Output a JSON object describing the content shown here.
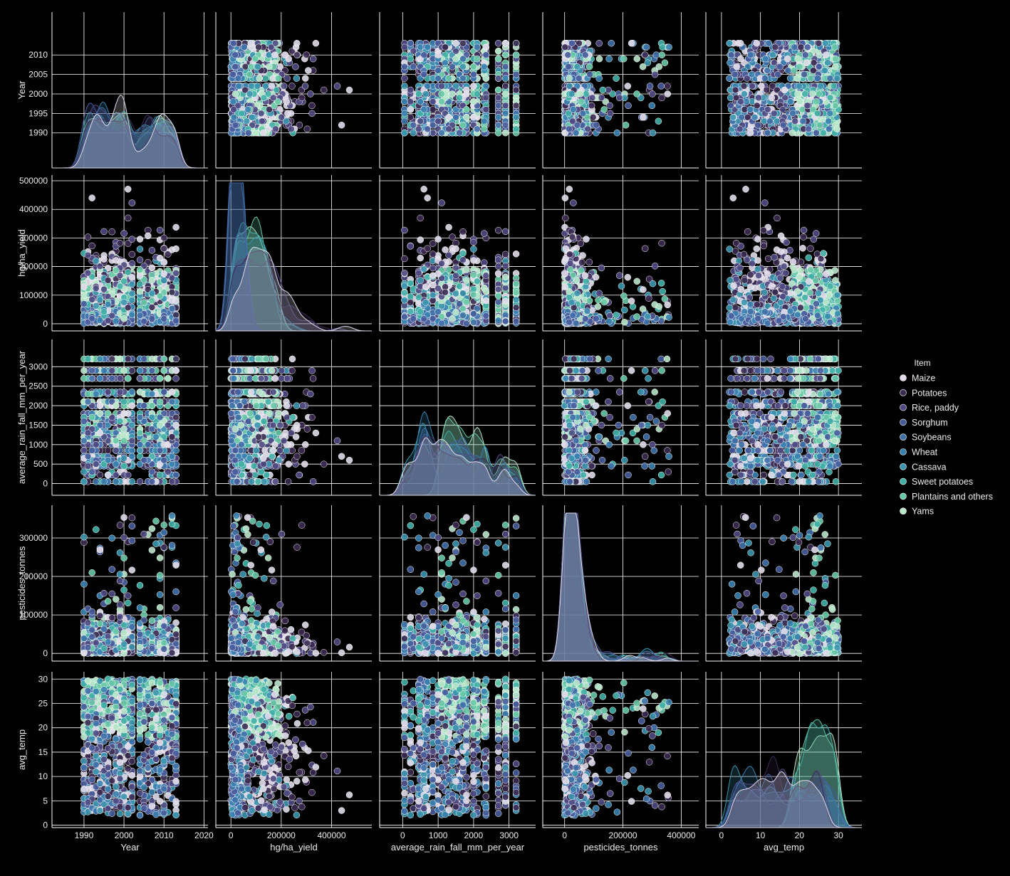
{
  "chart_data": {
    "type": "scatter",
    "subtype": "pairplot",
    "variables": [
      "Year",
      "hg/ha_yield",
      "average_rain_fall_mm_per_year",
      "pesticides_tonnes",
      "avg_temp"
    ],
    "hue": "Item",
    "diagonal": "kde",
    "grid": true,
    "legend": {
      "title": "Item",
      "placement": "right",
      "entries": [
        {
          "label": "Maize",
          "color": "#e1dbea"
        },
        {
          "label": "Potatoes",
          "color": "#3b2a52"
        },
        {
          "label": "Rice, paddy",
          "color": "#4f4a83"
        },
        {
          "label": "Sorghum",
          "color": "#475c9c"
        },
        {
          "label": "Soybeans",
          "color": "#3f70a8"
        },
        {
          "label": "Wheat",
          "color": "#3a82b0"
        },
        {
          "label": "Cassava",
          "color": "#3a95ae"
        },
        {
          "label": "Sweet potatoes",
          "color": "#40b0a6"
        },
        {
          "label": "Plantains and others",
          "color": "#68c9a6"
        },
        {
          "label": "Yams",
          "color": "#b8e6c9"
        }
      ]
    },
    "axes": {
      "Year": {
        "range": [
          1981,
          2021
        ],
        "ticks": [
          1990,
          1995,
          2000,
          2005,
          2010
        ],
        "ticks_x": [
          1990,
          2000,
          2010,
          2020
        ]
      },
      "hg/ha_yield": {
        "range": [
          -25000,
          520000
        ],
        "ticks": [
          0,
          100000,
          200000,
          300000,
          400000,
          500000
        ],
        "ticks_x": [
          0,
          200000,
          400000
        ]
      },
      "average_rain_fall_mm_per_year": {
        "range": [
          -300,
          3700
        ],
        "ticks": [
          0,
          500,
          1000,
          1500,
          2000,
          2500,
          3000
        ],
        "ticks_x": [
          0,
          1000,
          2000,
          3000
        ]
      },
      "pesticides_tonnes": {
        "range": [
          -20000,
          385000
        ],
        "ticks": [
          0,
          100000,
          200000,
          300000
        ],
        "ticks_x": [
          0,
          200000,
          400000
        ]
      },
      "avg_temp": {
        "range": [
          -0.5,
          31.5
        ],
        "ticks": [
          0,
          5,
          10,
          15,
          20,
          25,
          30
        ],
        "ticks_x": [
          0,
          10,
          20,
          30
        ]
      }
    },
    "axis_ranges_x": {
      "Year": [
        1982,
        2021
      ],
      "hg/ha_yield": [
        -60000,
        560000
      ],
      "average_rain_fall_mm_per_year": [
        -650,
        3750
      ],
      "pesticides_tonnes": [
        -75000,
        460000
      ],
      "avg_temp": [
        -4,
        36
      ]
    },
    "tick_labels": {
      "Year": [
        "1990",
        "1995",
        "2000",
        "2005",
        "2010"
      ],
      "Year_x": [
        "1990",
        "2000",
        "2010",
        "2020"
      ],
      "hg/ha_yield": [
        "0",
        "100000",
        "200000",
        "300000",
        "400000",
        "500000"
      ],
      "hg/ha_yield_x": [
        "0",
        "200000",
        "400000"
      ],
      "average_rain_fall_mm_per_year": [
        "0",
        "500",
        "1000",
        "1500",
        "2000",
        "2500",
        "3000"
      ],
      "average_rain_fall_mm_per_year_x": [
        "0",
        "1000",
        "2000",
        "3000"
      ],
      "pesticides_tonnes": [
        "0",
        "100000",
        "200000",
        "300000"
      ],
      "pesticides_tonnes_x": [
        "0",
        "200000",
        "400000"
      ],
      "avg_temp": [
        "0",
        "5",
        "10",
        "15",
        "20",
        "25",
        "30"
      ],
      "avg_temp_x": [
        "0",
        "10",
        "20",
        "30"
      ]
    },
    "observations": {
      "Year_span": [
        1990,
        2013
      ],
      "Year_gap": [
        2003,
        2003
      ],
      "yield_max": 501412,
      "rain_levels": [
        51,
        220,
        300,
        450,
        500,
        600,
        650,
        700,
        850,
        1000,
        1100,
        1200,
        1300,
        1400,
        1500,
        1600,
        1700,
        1800,
        2000,
        2100,
        2300,
        2350,
        2700,
        2900,
        3200
      ],
      "pesticides_max": 367778,
      "temp_range": [
        1.3,
        30.65
      ]
    }
  }
}
